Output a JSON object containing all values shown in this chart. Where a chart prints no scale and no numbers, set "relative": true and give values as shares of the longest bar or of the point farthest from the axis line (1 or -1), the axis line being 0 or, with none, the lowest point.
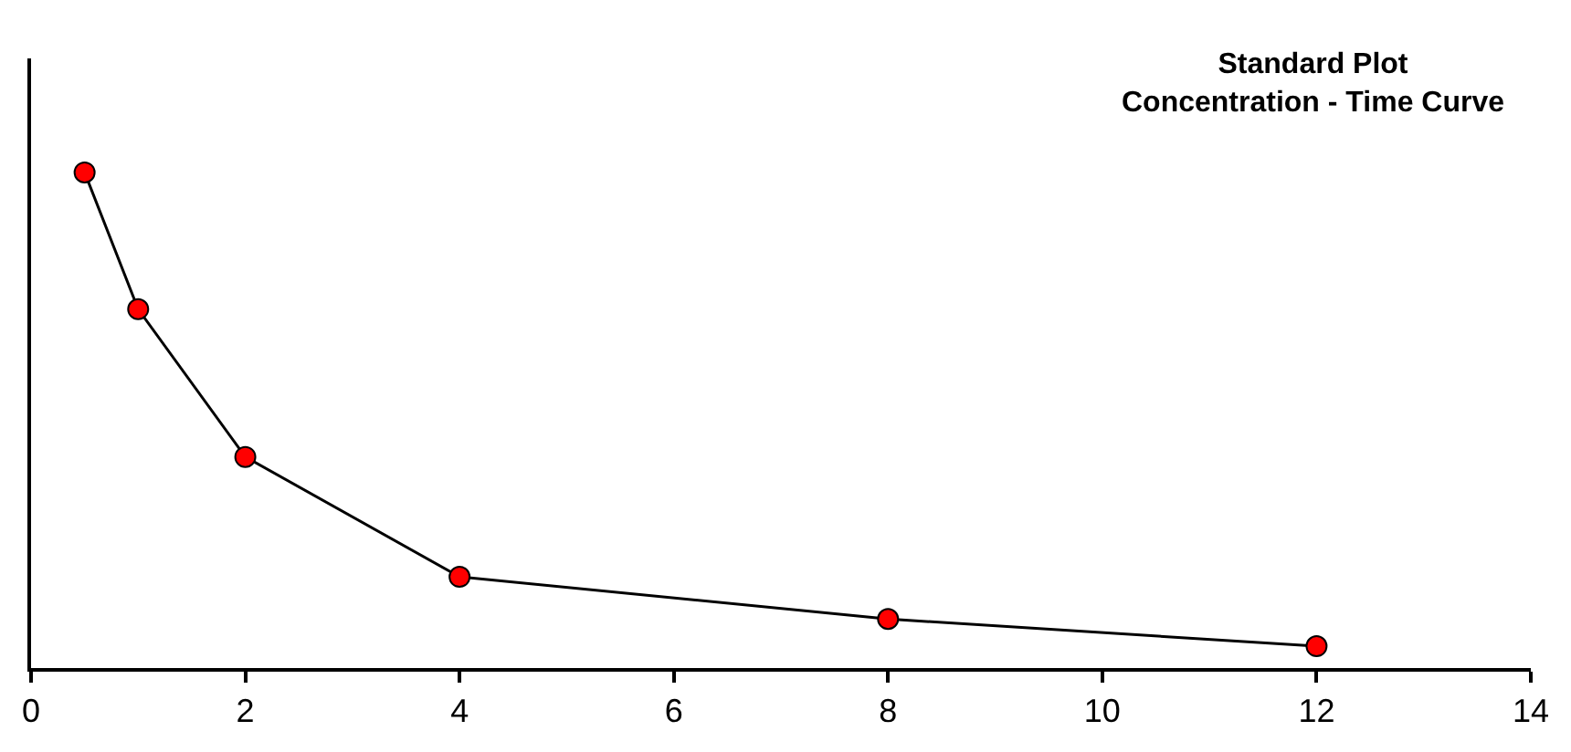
{
  "chart_data": {
    "type": "line",
    "title": "Standard Plot",
    "subtitle": "Concentration - Time Curve",
    "x": [
      0.5,
      1,
      2,
      4,
      8,
      12
    ],
    "series": [
      {
        "color": "#ff0000",
        "values": [
          1,
          0.724,
          0.426,
          0.184,
          0.099,
          0.044
        ]
      }
    ],
    "relative": true,
    "xlim": [
      0,
      14
    ],
    "xticks": [
      0,
      2,
      4,
      6,
      8,
      10,
      12,
      14
    ],
    "marker": "circle",
    "line_style": "solid"
  }
}
